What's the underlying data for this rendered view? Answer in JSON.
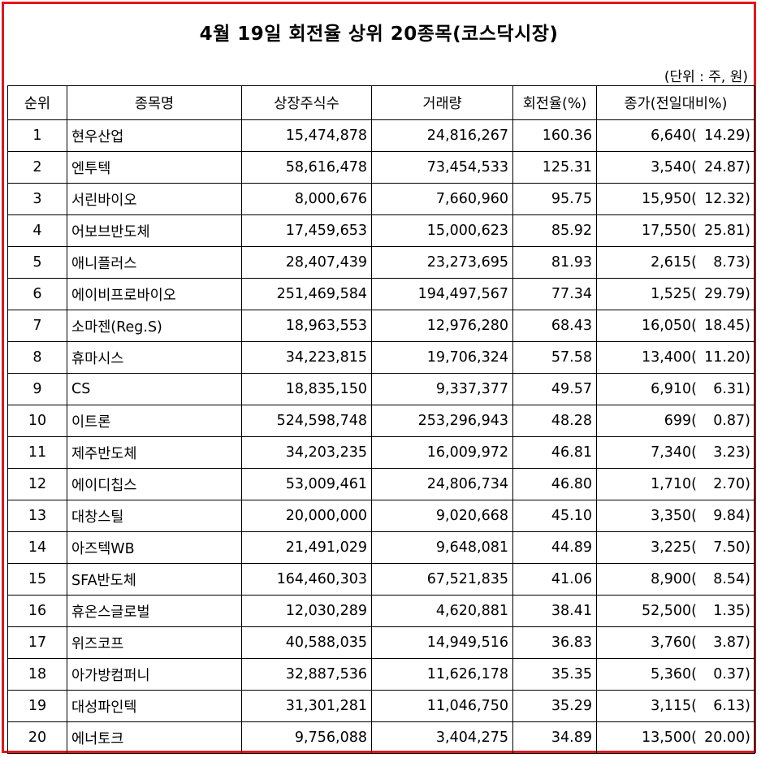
{
  "title": "4월 19일 회전율 상위 20종목(코스닥시장)",
  "unit_note": "(단위 : 주, 원)",
  "columns": [
    "순위",
    "종목명",
    "상장주식수",
    "거래량",
    "회전율(%)",
    "종가(전일대비%)"
  ],
  "rows": [
    {
      "rank": "1",
      "name": "현우산업",
      "listed_shares": "15,474,878",
      "volume": "24,816,267",
      "turnover": "160.36",
      "close": "6,640(",
      "change": "14.29)"
    },
    {
      "rank": "2",
      "name": "엔투텍",
      "listed_shares": "58,616,478",
      "volume": "73,454,533",
      "turnover": "125.31",
      "close": "3,540(",
      "change": "24.87)"
    },
    {
      "rank": "3",
      "name": "서린바이오",
      "listed_shares": "8,000,676",
      "volume": "7,660,960",
      "turnover": "95.75",
      "close": "15,950(",
      "change": "12.32)"
    },
    {
      "rank": "4",
      "name": "어보브반도체",
      "listed_shares": "17,459,653",
      "volume": "15,000,623",
      "turnover": "85.92",
      "close": "17,550(",
      "change": "25.81)"
    },
    {
      "rank": "5",
      "name": "애니플러스",
      "listed_shares": "28,407,439",
      "volume": "23,273,695",
      "turnover": "81.93",
      "close": "2,615(",
      "change": "8.73)"
    },
    {
      "rank": "6",
      "name": "에이비프로바이오",
      "listed_shares": "251,469,584",
      "volume": "194,497,567",
      "turnover": "77.34",
      "close": "1,525(",
      "change": "29.79)"
    },
    {
      "rank": "7",
      "name": "소마젠(Reg.S)",
      "listed_shares": "18,963,553",
      "volume": "12,976,280",
      "turnover": "68.43",
      "close": "16,050(",
      "change": "18.45)"
    },
    {
      "rank": "8",
      "name": "휴마시스",
      "listed_shares": "34,223,815",
      "volume": "19,706,324",
      "turnover": "57.58",
      "close": "13,400(",
      "change": "11.20)"
    },
    {
      "rank": "9",
      "name": "CS",
      "listed_shares": "18,835,150",
      "volume": "9,337,377",
      "turnover": "49.57",
      "close": "6,910(",
      "change": "6.31)"
    },
    {
      "rank": "10",
      "name": "이트론",
      "listed_shares": "524,598,748",
      "volume": "253,296,943",
      "turnover": "48.28",
      "close": "699(",
      "change": "0.87)"
    },
    {
      "rank": "11",
      "name": "제주반도체",
      "listed_shares": "34,203,235",
      "volume": "16,009,972",
      "turnover": "46.81",
      "close": "7,340(",
      "change": "3.23)"
    },
    {
      "rank": "12",
      "name": "에이디칩스",
      "listed_shares": "53,009,461",
      "volume": "24,806,734",
      "turnover": "46.80",
      "close": "1,710(",
      "change": "2.70)"
    },
    {
      "rank": "13",
      "name": "대창스틸",
      "listed_shares": "20,000,000",
      "volume": "9,020,668",
      "turnover": "45.10",
      "close": "3,350(",
      "change": "9.84)"
    },
    {
      "rank": "14",
      "name": "아즈텍WB",
      "listed_shares": "21,491,029",
      "volume": "9,648,081",
      "turnover": "44.89",
      "close": "3,225(",
      "change": "7.50)"
    },
    {
      "rank": "15",
      "name": "SFA반도체",
      "listed_shares": "164,460,303",
      "volume": "67,521,835",
      "turnover": "41.06",
      "close": "8,900(",
      "change": "8.54)"
    },
    {
      "rank": "16",
      "name": "휴온스글로벌",
      "listed_shares": "12,030,289",
      "volume": "4,620,881",
      "turnover": "38.41",
      "close": "52,500(",
      "change": "1.35)"
    },
    {
      "rank": "17",
      "name": "위즈코프",
      "listed_shares": "40,588,035",
      "volume": "14,949,516",
      "turnover": "36.83",
      "close": "3,760(",
      "change": "3.87)"
    },
    {
      "rank": "18",
      "name": "아가방컴퍼니",
      "listed_shares": "32,887,536",
      "volume": "11,626,178",
      "turnover": "35.35",
      "close": "5,360(",
      "change": "0.37)"
    },
    {
      "rank": "19",
      "name": "대성파인텍",
      "listed_shares": "31,301,281",
      "volume": "11,046,750",
      "turnover": "35.29",
      "close": "3,115(",
      "change": "6.13)"
    },
    {
      "rank": "20",
      "name": "에너토크",
      "listed_shares": "9,756,088",
      "volume": "3,404,275",
      "turnover": "34.89",
      "close": "13,500(",
      "change": "20.00)"
    }
  ],
  "colors": {
    "frame_border": "#e8141b",
    "grid": "#000000",
    "background": "#ffffff"
  }
}
